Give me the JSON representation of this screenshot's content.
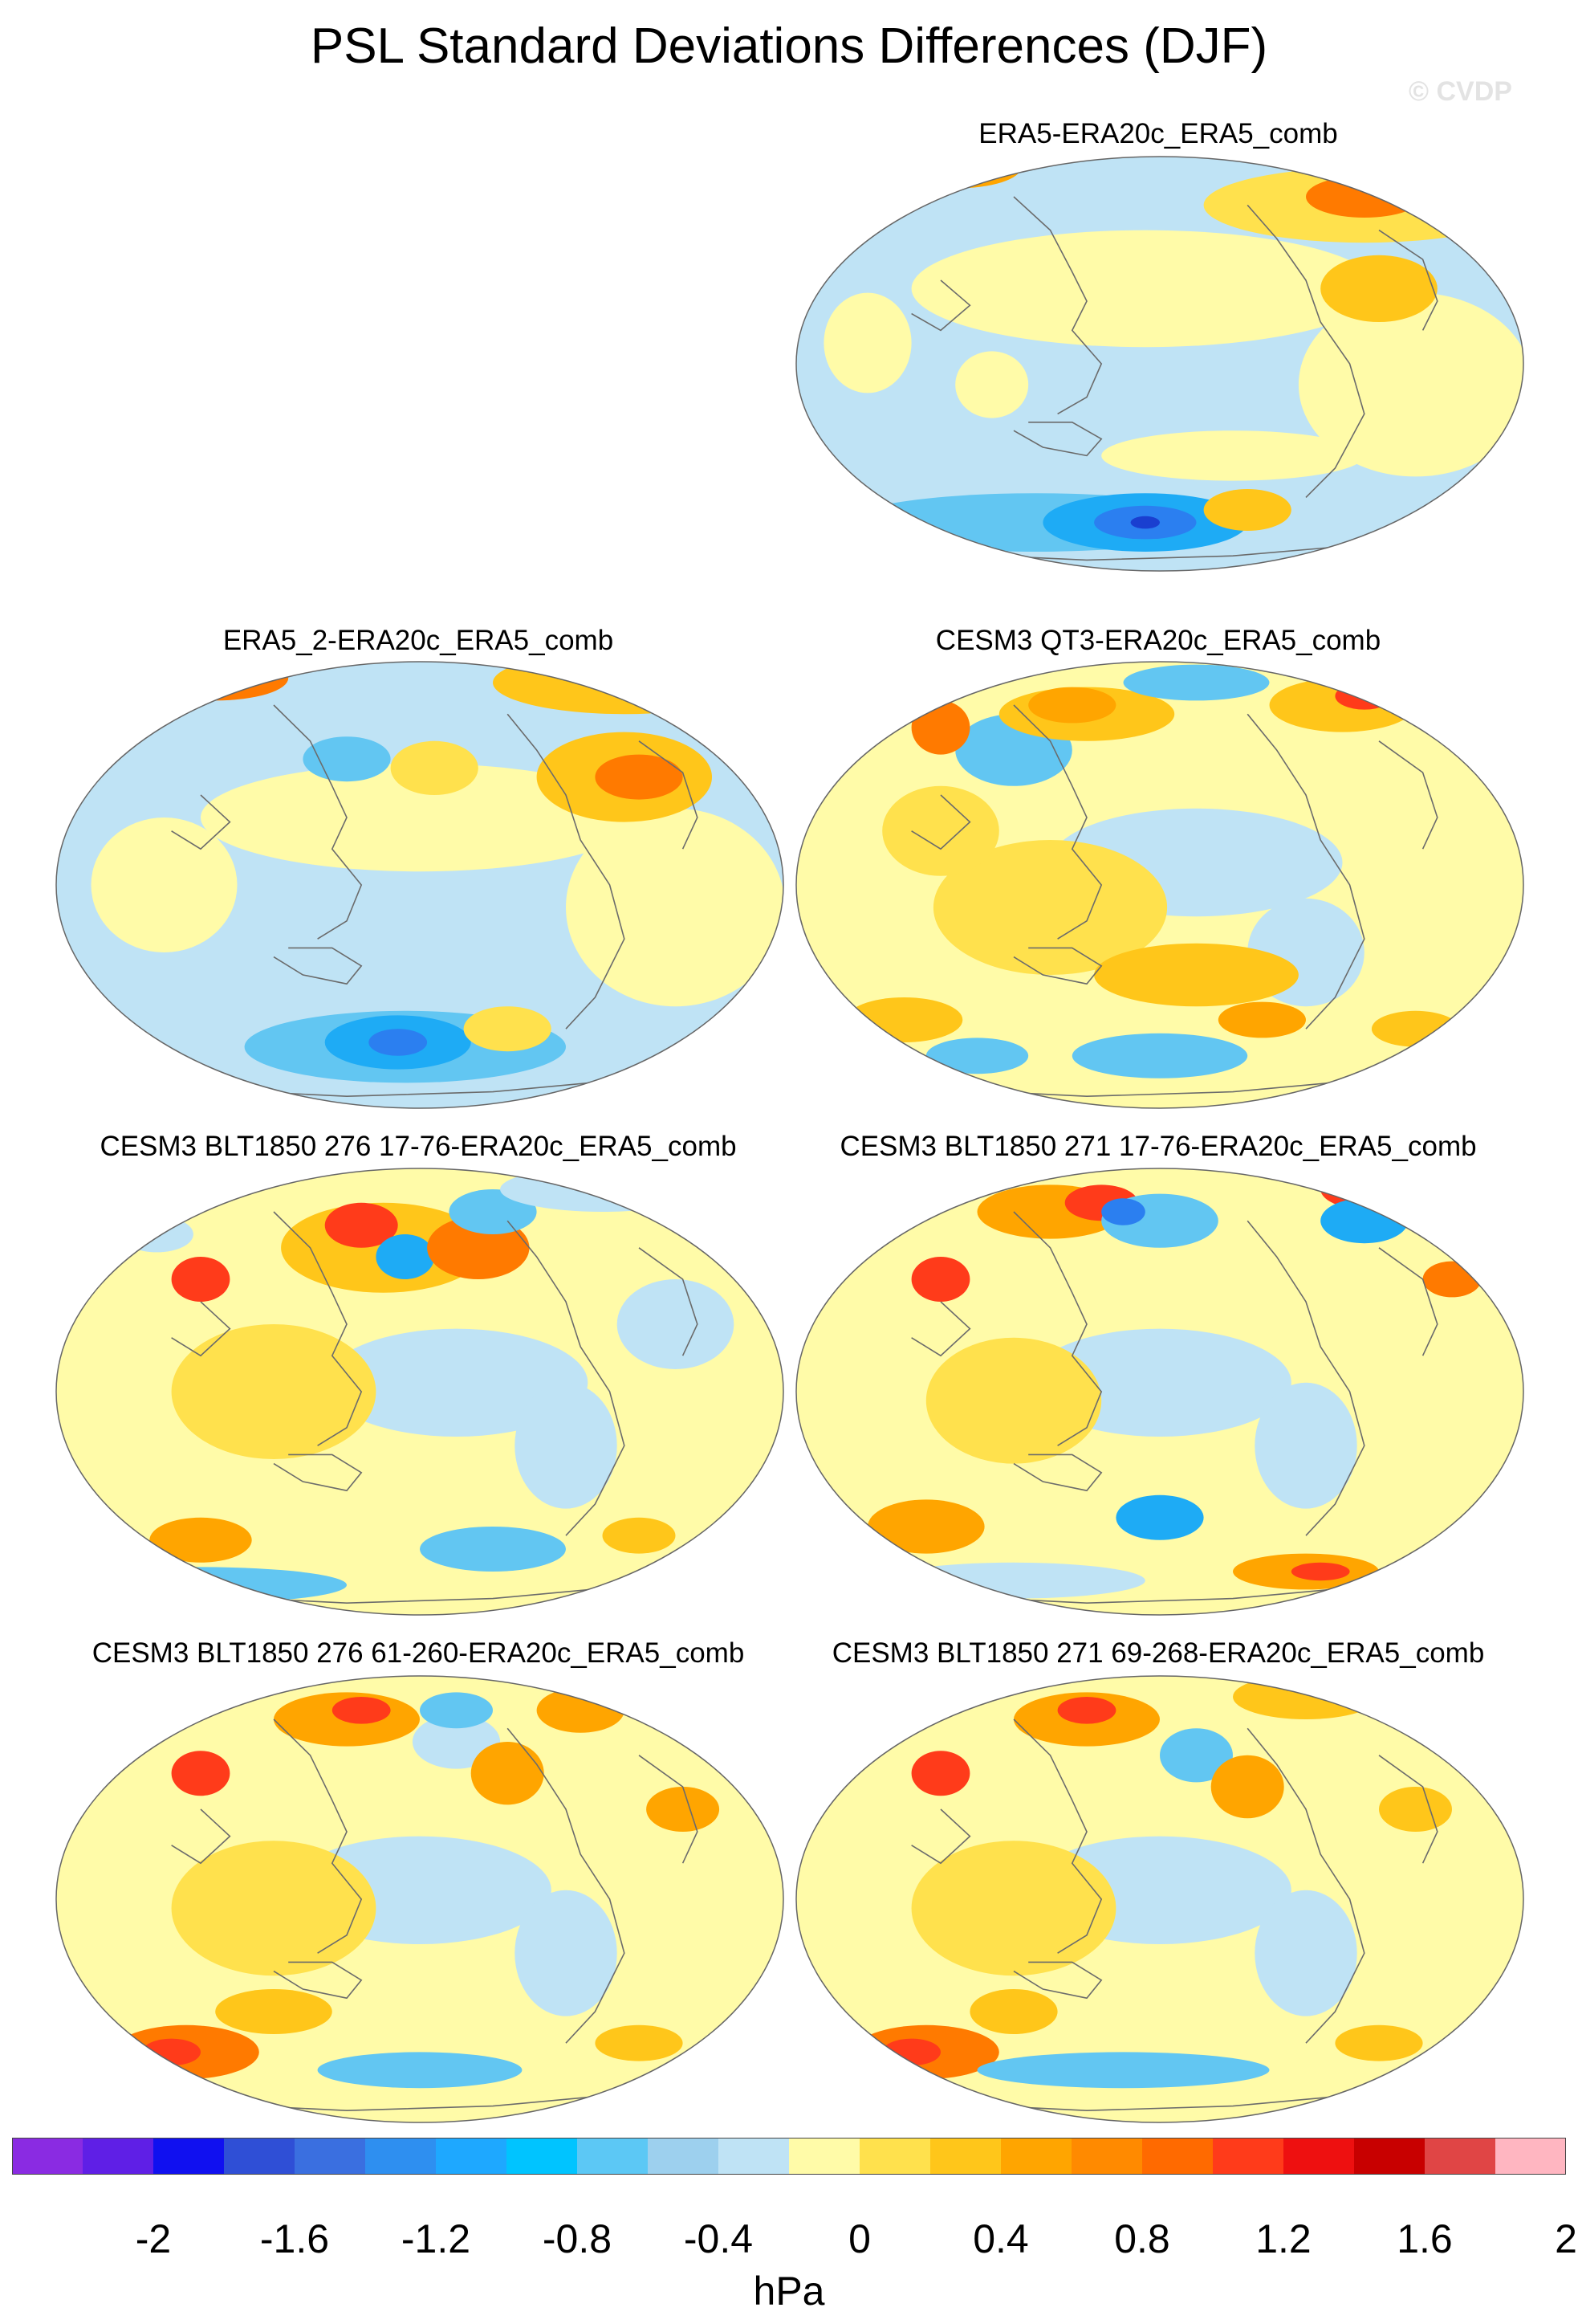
{
  "title": "PSL Standard Deviations Differences (DJF)",
  "copyright": "© CVDP",
  "panels": [
    {
      "label": "ERA5-ERA20c_ERA5_comb"
    },
    {
      "label": "ERA5_2-ERA20c_ERA5_comb"
    },
    {
      "label": "CESM3 QT3-ERA20c_ERA5_comb"
    },
    {
      "label": "CESM3 BLT1850 276 17-76-ERA20c_ERA5_comb"
    },
    {
      "label": "CESM3 BLT1850 271 17-76-ERA20c_ERA5_comb"
    },
    {
      "label": "CESM3 BLT1850 276 61-260-ERA20c_ERA5_comb"
    },
    {
      "label": "CESM3 BLT1850 271 69-268-ERA20c_ERA5_comb"
    }
  ],
  "colorbar": {
    "colors": [
      "#8a2be2",
      "#5f1fe6",
      "#1010f0",
      "#2f4fd6",
      "#3a6fe0",
      "#2e8ff0",
      "#1ea8ff",
      "#00c4ff",
      "#5cc8f5",
      "#9dd0ee",
      "#bfe3f5",
      "#fffba8",
      "#ffe14d",
      "#ffc61a",
      "#ffa500",
      "#ff8a00",
      "#ff6a00",
      "#ff3b1a",
      "#ee1010",
      "#c80000",
      "#e04545",
      "#ffb6c1"
    ],
    "tick_labels": [
      "-2",
      "-1.6",
      "-1.2",
      "-0.8",
      "-0.4",
      "0",
      "0.4",
      "0.8",
      "1.2",
      "1.6",
      "2"
    ],
    "units": "hPa"
  }
}
